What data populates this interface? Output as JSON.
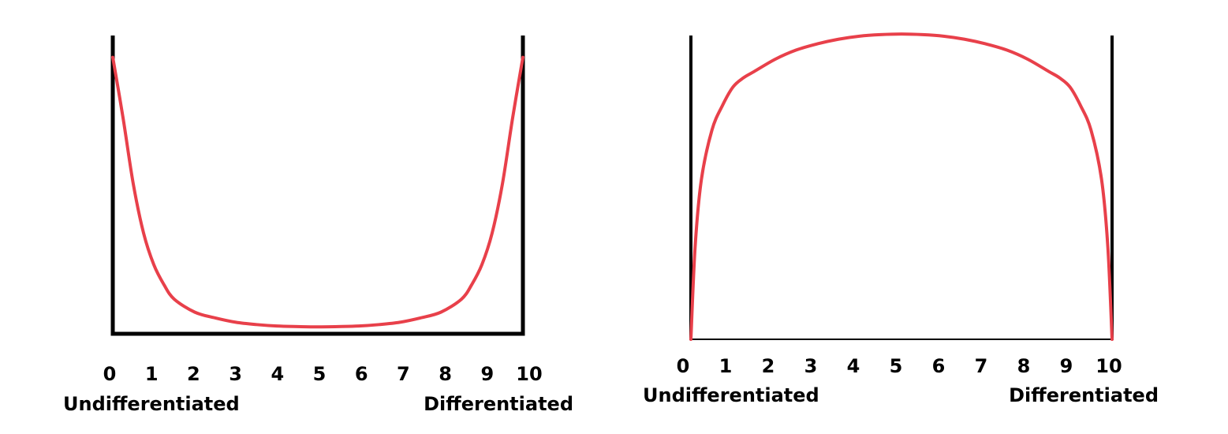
{
  "colors": {
    "curve": "#e8404a",
    "axis": "#000000",
    "background": "#ffffff"
  },
  "chart_data": [
    {
      "type": "line",
      "title": "",
      "xlabel": "",
      "ylabel": "",
      "xlim": [
        0,
        10
      ],
      "ylim": [
        0,
        1
      ],
      "grid": false,
      "ticks": [
        "0",
        "1",
        "2",
        "3",
        "4",
        "5",
        "6",
        "7",
        "8",
        "9",
        "10"
      ],
      "left_label": "Undifferentiated",
      "right_label": "Differentiated",
      "series": [
        {
          "x": [
            0,
            0.25,
            0.5,
            0.75,
            1.0,
            1.25,
            1.5,
            2.0,
            2.5,
            3.0,
            3.5,
            4.0,
            4.5,
            5.0,
            5.5,
            6.0,
            6.5,
            7.0,
            7.5,
            8.0,
            8.5,
            8.75,
            9.0,
            9.25,
            9.5,
            9.75,
            10
          ],
          "y": [
            0.96,
            0.75,
            0.52,
            0.35,
            0.24,
            0.17,
            0.12,
            0.075,
            0.055,
            0.04,
            0.032,
            0.027,
            0.025,
            0.024,
            0.025,
            0.027,
            0.032,
            0.04,
            0.055,
            0.075,
            0.12,
            0.17,
            0.24,
            0.35,
            0.52,
            0.75,
            0.96
          ]
        }
      ]
    },
    {
      "type": "line",
      "title": "",
      "xlabel": "",
      "ylabel": "",
      "xlim": [
        0,
        10
      ],
      "ylim": [
        0,
        1
      ],
      "grid": false,
      "ticks": [
        "0",
        "1",
        "2",
        "3",
        "4",
        "5",
        "6",
        "7",
        "8",
        "9",
        "10"
      ],
      "left_label": "Undifferentiated",
      "right_label": "Differentiated",
      "series": [
        {
          "x": [
            0,
            0.1,
            0.25,
            0.5,
            0.75,
            1.0,
            1.25,
            1.5,
            2.0,
            2.5,
            3.0,
            3.5,
            4.0,
            4.5,
            5.0,
            5.5,
            6.0,
            6.5,
            7.0,
            7.5,
            8.0,
            8.5,
            8.75,
            9.0,
            9.25,
            9.5,
            9.75,
            9.9,
            10
          ],
          "y": [
            0,
            0.3,
            0.52,
            0.68,
            0.76,
            0.82,
            0.85,
            0.87,
            0.91,
            0.94,
            0.96,
            0.975,
            0.985,
            0.99,
            0.992,
            0.99,
            0.985,
            0.975,
            0.96,
            0.94,
            0.91,
            0.87,
            0.85,
            0.82,
            0.76,
            0.68,
            0.52,
            0.3,
            0
          ]
        }
      ]
    }
  ]
}
